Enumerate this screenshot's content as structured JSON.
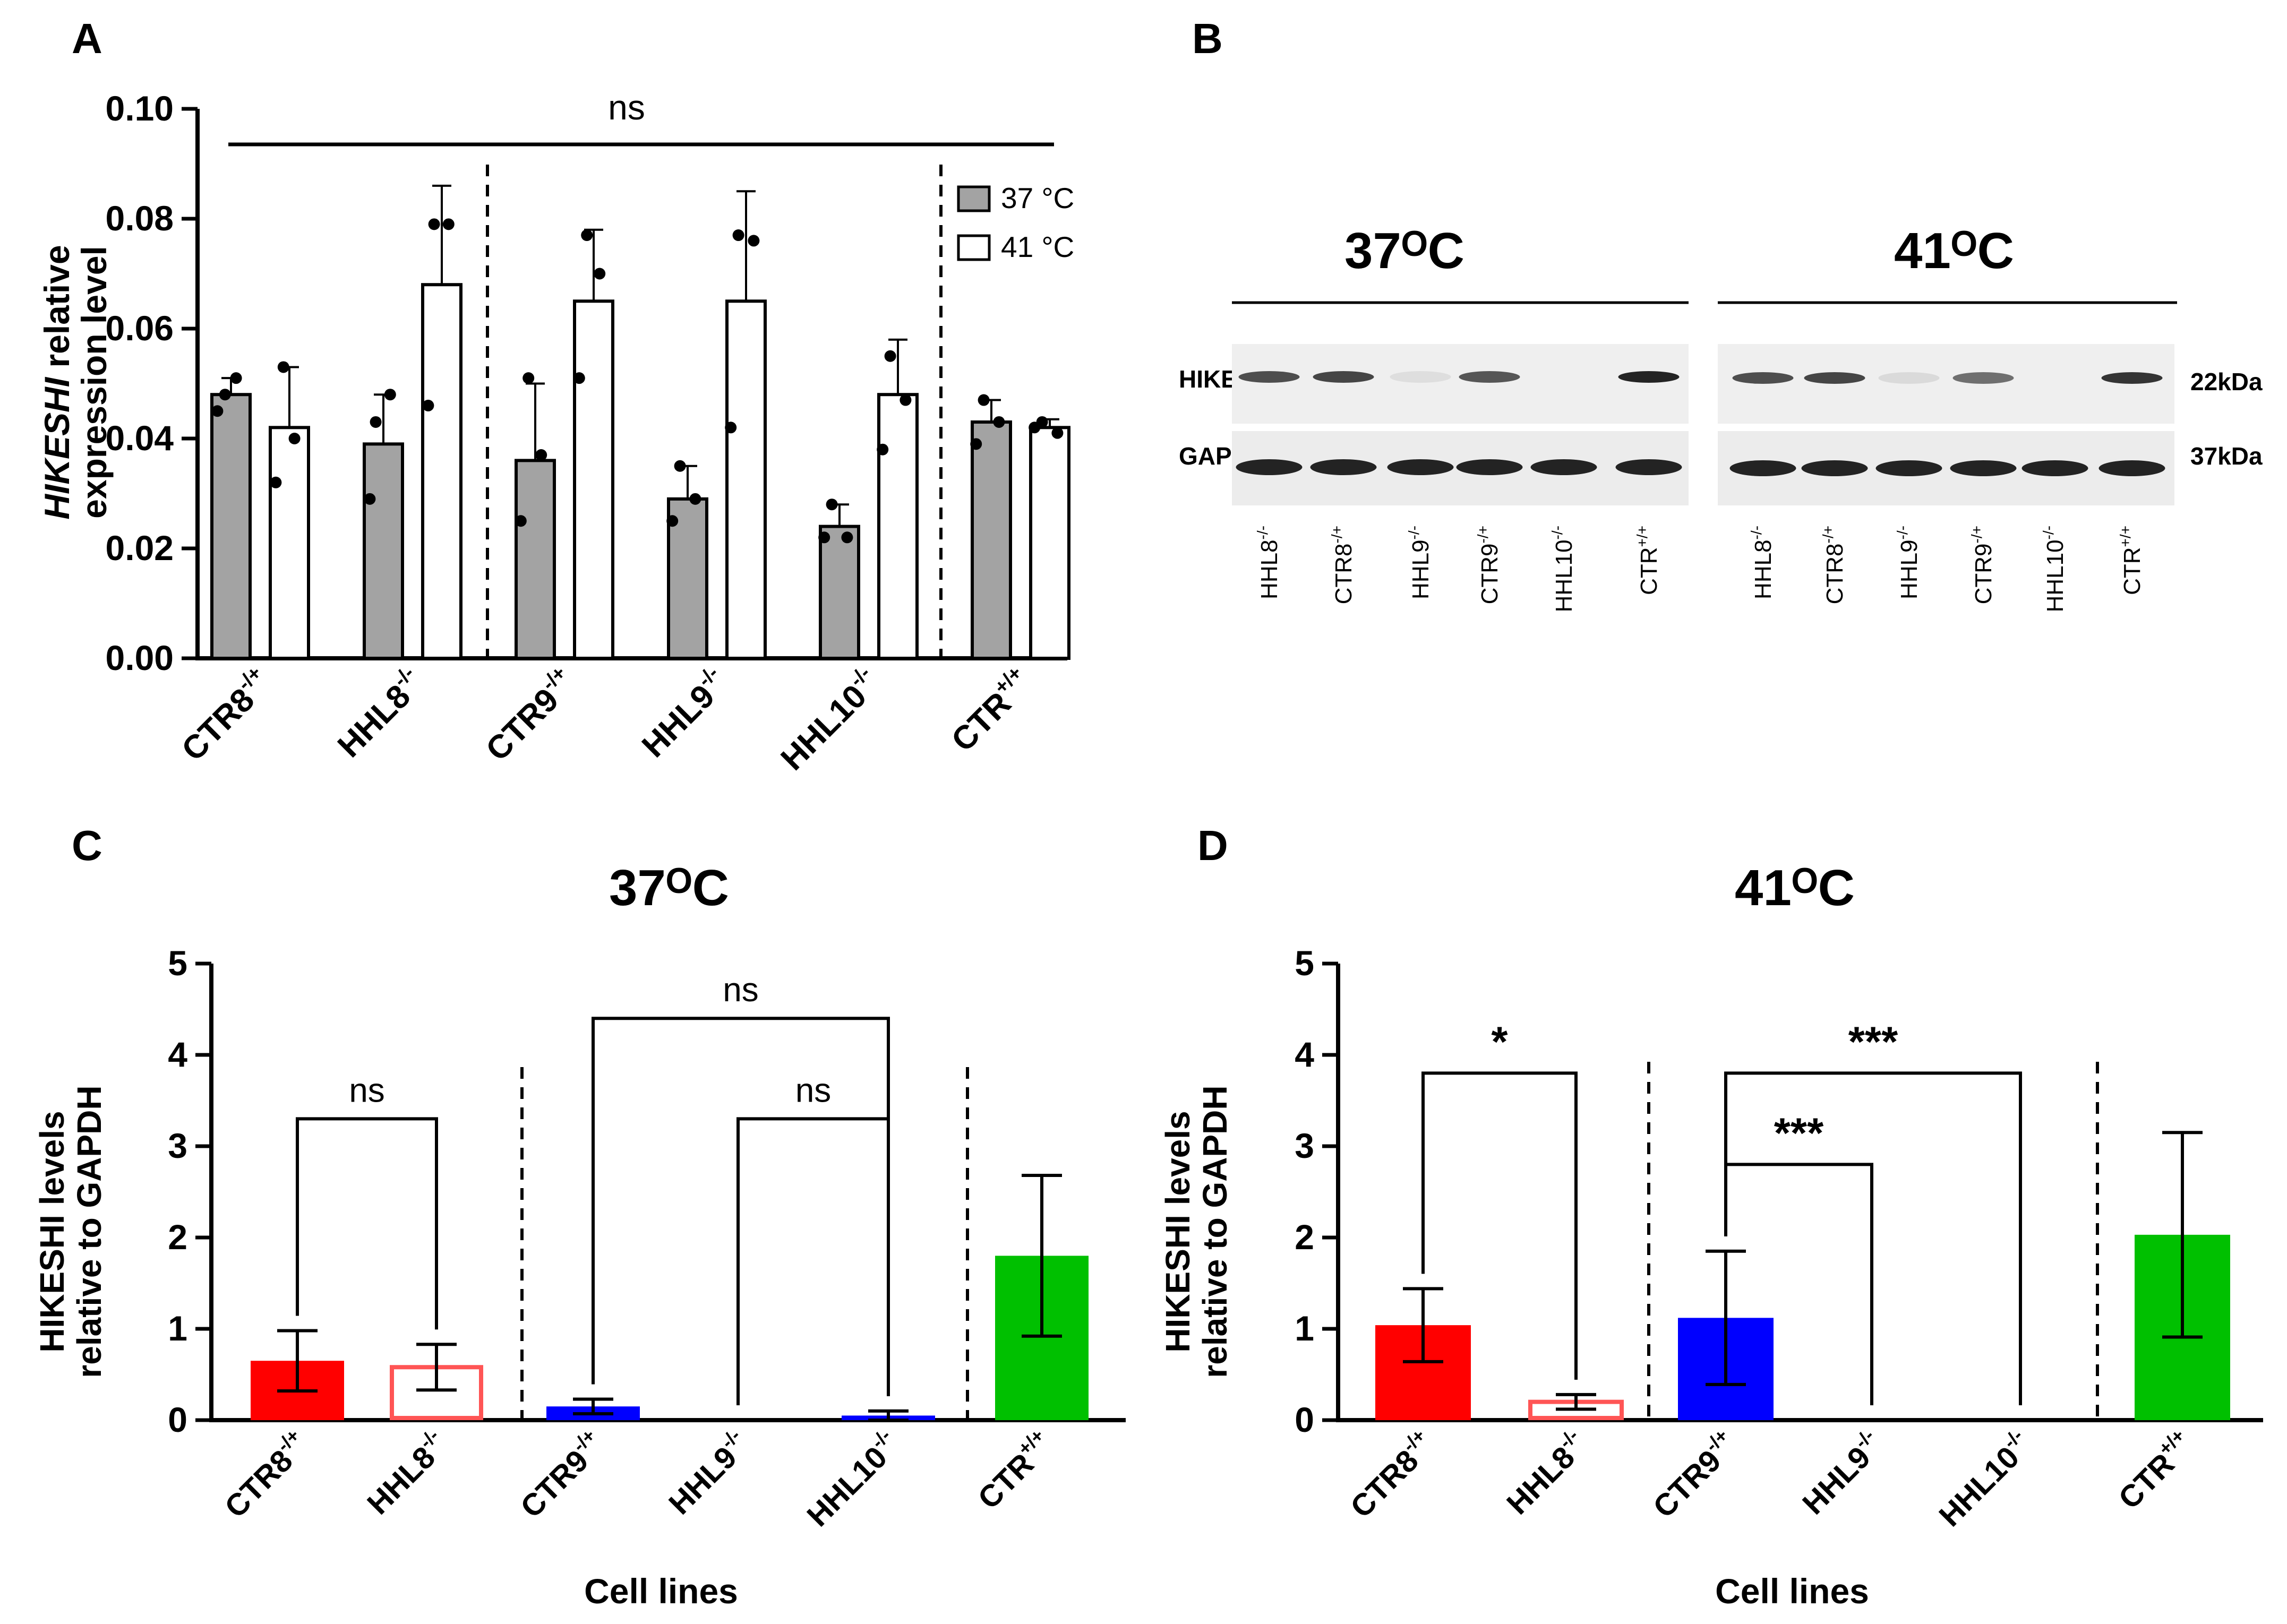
{
  "figure": {
    "panel_a": {
      "letter": "A",
      "ylabel_italic": "HIKESHI",
      "ylabel_rest": " relative",
      "ylabel_line2": "expression level",
      "significance": "ns",
      "legend": [
        "37 °C",
        "41 °C"
      ]
    },
    "panel_b": {
      "letter": "B",
      "title_left": "37ᴼC",
      "title_right": "41ᴼC",
      "row_labels": [
        "HIKEHSI",
        "GAPDH"
      ],
      "size_labels": [
        "22kDa",
        "37kDa"
      ],
      "lane_base": [
        "HHL8",
        "CTR8",
        "HHL9",
        "CTR9",
        "HHL10",
        "CTR"
      ],
      "lane_sup": [
        "-/-",
        "-/+",
        "-/-",
        "-/+",
        "-/-",
        "+/+"
      ]
    },
    "panel_c": {
      "letter": "C",
      "title": "37ᴼC",
      "ylabel_line1": "HIKESHI levels",
      "ylabel_line2": "relative to GAPDH",
      "xlabel": "Cell lines"
    },
    "panel_d": {
      "letter": "D",
      "title": "41ᴼC",
      "ylabel_line1": "HIKESHI levels",
      "ylabel_line2": "relative to GAPDH",
      "xlabel": "Cell lines"
    }
  },
  "colors": {
    "gray_bar": "#a3a3a3",
    "red": "#ff0000",
    "red_outline": "#ff5555",
    "blue": "#0000ff",
    "green": "#00c000"
  },
  "chart_data": [
    {
      "id": "A",
      "type": "bar",
      "yticks": [
        "0.00",
        "0.02",
        "0.04",
        "0.06",
        "0.08",
        "0.10"
      ],
      "ylim": [
        0,
        0.1
      ],
      "categories": [
        "CTR8",
        "HHL8",
        "CTR9",
        "HHL9",
        "HHL10",
        "CTR"
      ],
      "category_sup": [
        "-/+",
        "-/-",
        "-/+",
        "-/-",
        "-/-",
        "+/+"
      ],
      "series": [
        {
          "name": "37 °C",
          "values": [
            0.048,
            0.039,
            0.036,
            0.029,
            0.024,
            0.043
          ],
          "err": [
            0.003,
            0.009,
            0.014,
            0.006,
            0.004,
            0.004
          ],
          "points": [
            [
              0.048,
              0.051,
              0.045
            ],
            [
              0.043,
              0.048,
              0.029
            ],
            [
              0.051,
              0.037,
              0.025
            ],
            [
              0.035,
              0.029,
              0.025
            ],
            [
              0.028,
              0.022,
              0.022
            ],
            [
              0.047,
              0.043,
              0.039
            ]
          ]
        },
        {
          "name": "41 °C",
          "values": [
            0.042,
            0.068,
            0.065,
            0.065,
            0.048,
            0.042
          ],
          "err": [
            0.011,
            0.018,
            0.013,
            0.02,
            0.01,
            0.0015
          ],
          "points": [
            [
              0.053,
              0.04,
              0.032
            ],
            [
              0.079,
              0.079,
              0.046
            ],
            [
              0.077,
              0.07,
              0.051
            ],
            [
              0.077,
              0.076,
              0.042
            ],
            [
              0.055,
              0.047,
              0.038
            ],
            [
              0.043,
              0.041,
              0.042
            ]
          ]
        }
      ],
      "significance": [
        {
          "label": "ns",
          "from": 0,
          "to": 5
        }
      ]
    },
    {
      "id": "C",
      "type": "bar",
      "title": "37ᴼC",
      "xlabel": "Cell lines",
      "ylabel": "HIKESHI levels relative to GAPDH",
      "yticks": [
        "0",
        "1",
        "2",
        "3",
        "4",
        "5"
      ],
      "ylim": [
        0,
        5
      ],
      "categories": [
        "CTR8",
        "HHL8",
        "CTR9",
        "HHL9",
        "HHL10",
        "CTR"
      ],
      "category_sup": [
        "-/+",
        "-/-",
        "-/+",
        "-/-",
        "-/-",
        "+/+"
      ],
      "values": [
        0.65,
        0.58,
        0.15,
        0.0,
        0.05,
        1.8
      ],
      "err": [
        0.33,
        0.25,
        0.08,
        0.0,
        0.05,
        0.88
      ],
      "bar_colors": [
        "#ff0000",
        "outline:#ff5555",
        "#0000ff",
        "none",
        "#0000ff",
        "#00c000"
      ],
      "brackets": [
        {
          "label": "ns",
          "from": 0,
          "to": 1,
          "y": 3.3
        },
        {
          "label": "ns",
          "from": 3,
          "to": 4,
          "y": 3.3
        },
        {
          "label": "ns",
          "from": 2,
          "to": 4,
          "y": 4.4
        }
      ]
    },
    {
      "id": "D",
      "type": "bar",
      "title": "41ᴼC",
      "xlabel": "Cell lines",
      "ylabel": "HIKESHI levels relative to GAPDH",
      "yticks": [
        "0",
        "1",
        "2",
        "3",
        "4",
        "5"
      ],
      "ylim": [
        0,
        5
      ],
      "categories": [
        "CTR8",
        "HHL8",
        "CTR9",
        "HHL9",
        "HHL10",
        "CTR"
      ],
      "category_sup": [
        "-/+",
        "-/-",
        "-/+",
        "-/-",
        "-/-",
        "+/+"
      ],
      "values": [
        1.04,
        0.2,
        1.12,
        0.0,
        0.0,
        2.03
      ],
      "err": [
        0.4,
        0.08,
        0.73,
        0.0,
        0.0,
        1.12
      ],
      "bar_colors": [
        "#ff0000",
        "outline:#ff5555",
        "#0000ff",
        "none",
        "none",
        "#00c000"
      ],
      "brackets": [
        {
          "label": "*",
          "from": 0,
          "to": 1,
          "y": 3.8
        },
        {
          "label": "***",
          "from": 2,
          "to": 3,
          "y": 2.8
        },
        {
          "label": "***",
          "from": 2,
          "to": 4,
          "y": 3.8
        }
      ]
    }
  ]
}
